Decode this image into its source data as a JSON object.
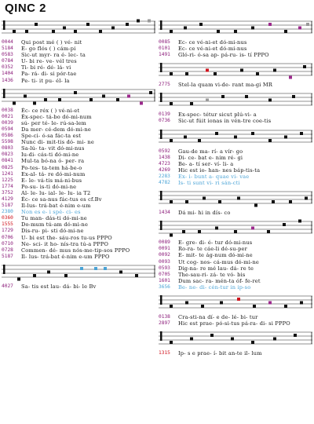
{
  "title": "QINC 2",
  "left_column": [
    {
      "lines": [
        {
          "num": "0044",
          "text": "Qui post  mé ( )  vé-  nit",
          "style": ""
        },
        {
          "num": "5184",
          "text": "E-  go    flós ( )  cám-pi",
          "style": ""
        },
        {
          "num": "0583",
          "text": "Sic-ut    myr- ra   é- lec- ta",
          "style": ""
        },
        {
          "num": "0784",
          "text": "U-  bi    re-  ve-  vél  tres",
          "style": ""
        },
        {
          "num": "0352",
          "text": "Ti- bi    ré-  dé-  lá-  vi",
          "style": ""
        },
        {
          "num": "1404",
          "text": "Pa- rá-   di-  si   pór-tae",
          "style": ""
        },
        {
          "num": "1436",
          "text": "Pe- ti-   it   pu-  él- la",
          "style": ""
        }
      ]
    },
    {
      "lines": [
        {
          "num": "0038",
          "text": "Éc- ce    réx ( )  vé-ni-et",
          "style": ""
        },
        {
          "num": "0021",
          "text": "Éx-spec-  tá-bo    dó-mi-num",
          "style": ""
        },
        {
          "num": "0039",
          "text": "sú- per   té- le-  rú-sa-lem",
          "style": ""
        },
        {
          "num": "0594",
          "text": "Da  mer-  cé-dem   dó-mi-ne",
          "style": ""
        },
        {
          "num": "0586",
          "text": "Spe-ci-   ó-sa     fác-ta est",
          "style": ""
        },
        {
          "num": "5598",
          "text": "Nunc di-  mit-tis  dó- mi- ne",
          "style": ""
        },
        {
          "num": "0803",
          "text": "Sa-lú-    ta- vit  dó-mi-nus",
          "style": ""
        },
        {
          "num": "0823",
          "text": "Iu-di-    cás-ti   dó-mi-ne",
          "style": ""
        },
        {
          "num": "0841",
          "text": "Mul-ta    bó-na    ó- per- ra",
          "style": ""
        },
        {
          "num": "0825",
          "text": "Po-tes-   ta-tem   há-be-o",
          "style": ""
        },
        {
          "num": "1241",
          "text": "Ex-al-    tá- re   dó-mi-num",
          "style": ""
        },
        {
          "num": "1225",
          "text": "E- le-    vá-tis   má-ni-bus",
          "style": ""
        },
        {
          "num": "1774",
          "text": "Po-su-    is-ti    dó-mi-ne",
          "style": ""
        },
        {
          "num": "3752",
          "text": "Al- le-   lu-  ial- le- lu- ia T2",
          "style": ""
        },
        {
          "num": "4129",
          "text": "Éc- ce    sa-nus   fác-tus es cf.Bv",
          "style": ""
        },
        {
          "num": "5187",
          "text": "Il-lus-   trá-bat  é-nim e-um",
          "style": ""
        },
        {
          "num": "2380",
          "text": "Non es    e- i     spé- ci- es",
          "style": "hl-blue"
        },
        {
          "num": "0360",
          "text": "Tu man-   dás-ti   dó-mi-ne",
          "style": "hl-red"
        },
        {
          "num": "1555",
          "text": "Do-mum    tú-am    dó-mi-ne",
          "style": "hl-red"
        },
        {
          "num": "1729",
          "text": "Dis-ru-   pi- sti  dó-mi-ne",
          "style": ""
        },
        {
          "num": "0706",
          "text": "U- bi     est  the-  sáu-ros tu-us PPPO",
          "style": ""
        },
        {
          "num": "0710",
          "text": "Ne- sci-  it   ho-  nís-tra tú-a PPPO",
          "style": ""
        },
        {
          "num": "0728",
          "text": "Commen-   dé- mus  nós-me-tip-sos PPPO",
          "style": ""
        },
        {
          "num": "5187",
          "text": "Il- lus-  trá-bat  é-nim e-um PPPO",
          "style": ""
        }
      ]
    },
    {
      "lines": [
        {
          "num": "4027",
          "text": "Sa- tis  est  lau-  dá- bi- le  Bv",
          "style": ""
        }
      ]
    }
  ],
  "right_column": [
    {
      "lines": [
        {
          "num": "0085",
          "text": "Ec- ce   vé-ni-et   dó-mi-nus",
          "style": ""
        },
        {
          "num": "0101",
          "text": "Ec- ce   vé-ni-et   dó-mi-nus",
          "style": ""
        },
        {
          "num": "1491",
          "text": "Gló-ri-  ó-sa ap-   pá-ru- is- tí PPPO",
          "style": ""
        }
      ]
    },
    {
      "lines": [
        {
          "num": "2775",
          "text": "Stel-la  quam vi-de-  rant ma-gi MR",
          "style": ""
        }
      ]
    },
    {
      "lines": [
        {
          "num": "0139",
          "text": "Ex-spec- tétur sicut  plú-vi- a",
          "style": ""
        },
        {
          "num": "0736",
          "text": "Sic-ut   fúit ionas in vén-tre coe-tis",
          "style": ""
        }
      ]
    },
    {
      "lines": [
        {
          "num": "0592",
          "text": "Gau-de  ma-  rí-  a    vír- go",
          "style": ""
        },
        {
          "num": "1438",
          "text": "Di- ce-  bat  e-   nim  ré- gi",
          "style": ""
        },
        {
          "num": "4723",
          "text": "Be- a-   tí   ser- ví-  li- a",
          "style": ""
        },
        {
          "num": "4269",
          "text": "Hic est  io-  han- nes  báp-tis-ta",
          "style": ""
        },
        {
          "num": "2283",
          "text": "Ex- i-   bunt a-   quae vi- vae",
          "style": "hl-blue"
        },
        {
          "num": "4782",
          "text": "Is- ti   sunt  vi-  ri   sán-cti",
          "style": "hl-blue"
        }
      ]
    },
    {
      "lines": [
        {
          "num": "1434",
          "text": "Dá  mi-      hi    in     dís-  co",
          "style": ""
        }
      ]
    },
    {
      "lines": [
        {
          "num": "0089",
          "text": "E- gre- di-  é- tur   dó-mi-nus",
          "style": ""
        },
        {
          "num": "0091",
          "text": "Ro-ra-  te   cáe-li   dé-su-per",
          "style": ""
        },
        {
          "num": "0092",
          "text": "E- mit- te   ág-num   dó-mi-ne",
          "style": ""
        },
        {
          "num": "0093",
          "text": "Ut cog- nos- cá-mus   dó-mi-ne",
          "style": ""
        },
        {
          "num": "0593",
          "text": "Dig-na- re   mé  lau- dá- re te",
          "style": ""
        },
        {
          "num": "0705",
          "text": "The-sau-ri-  zá- te   vó- bis",
          "style": ""
        },
        {
          "num": "1601",
          "text": "Dum sac- ra-  mén-ta  óf- fe-ret",
          "style": ""
        },
        {
          "num": "3656",
          "text": "Be- ne-  di-  cén-tur  in ip-so",
          "style": "hl-blue"
        }
      ]
    },
    {
      "lines": [
        {
          "num": "0138",
          "text": "Cra-sti-na   dí- e  de- lé- bi- tur",
          "style": ""
        },
        {
          "num": "2897",
          "text": "Hic est prae- pó-si-tus pá-ra- di- si PPPO",
          "style": ""
        }
      ]
    },
    {
      "lines": [
        {
          "num": "1315",
          "text": "Ip- s e  prae- í-  bit  an-te  il- lum",
          "style": "hl-red"
        }
      ]
    }
  ],
  "colors": {
    "number": "#8b1c7a",
    "red": "#d0141e",
    "blue": "#4aa3d6",
    "magenta_note": "#9c2a8c",
    "gray_note": "#999999"
  }
}
